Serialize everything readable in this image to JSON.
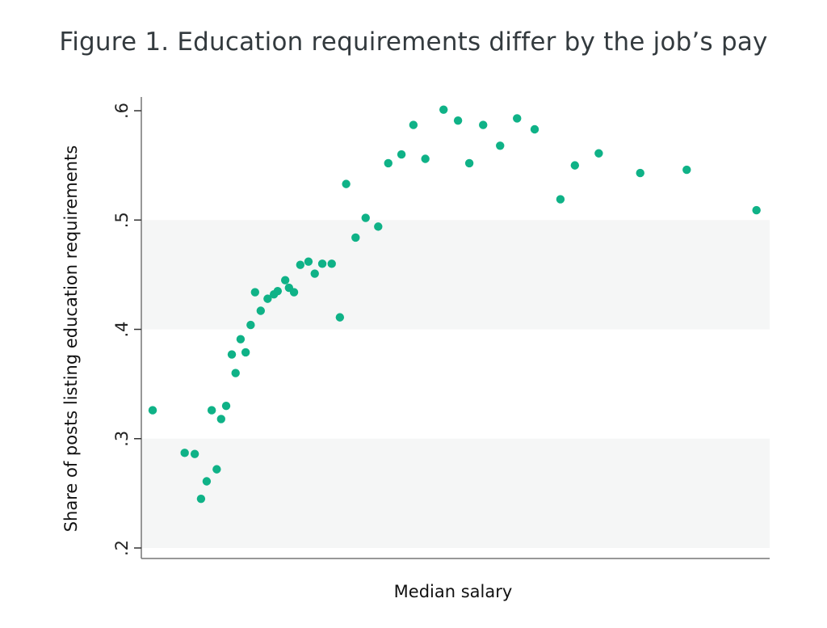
{
  "figure": {
    "title": "Figure 1. Education requirements differ by the job’s pay"
  },
  "colors": {
    "points": "#0fb287",
    "band": "#f5f6f6",
    "axis": "#777777",
    "title": "#333a3e"
  },
  "chart_data": {
    "type": "scatter",
    "title": "Figure 1. Education requirements differ by the job’s pay",
    "xlabel": "Median salary",
    "ylabel": "Share of posts listing education requirements",
    "x_note": "x-axis has no tick labels; x values are relative positions (0-100) along the Median salary axis",
    "ylim": [
      0.2,
      0.6
    ],
    "yticks": [
      ".2",
      ".3",
      ".4",
      ".5",
      ".6"
    ],
    "ytick_values": [
      0.2,
      0.3,
      0.4,
      0.5,
      0.6
    ],
    "grid": "alternating horizontal bands (.2-.3 and .4-.5 shaded)",
    "legend": "none",
    "series": [
      {
        "name": "Share of posts listing education requirements",
        "points": [
          {
            "x": 1.8,
            "y": 0.326
          },
          {
            "x": 6.9,
            "y": 0.287
          },
          {
            "x": 8.5,
            "y": 0.286
          },
          {
            "x": 9.5,
            "y": 0.245
          },
          {
            "x": 10.4,
            "y": 0.261
          },
          {
            "x": 11.2,
            "y": 0.326
          },
          {
            "x": 12.0,
            "y": 0.272
          },
          {
            "x": 12.7,
            "y": 0.318
          },
          {
            "x": 13.5,
            "y": 0.33
          },
          {
            "x": 14.4,
            "y": 0.377
          },
          {
            "x": 15.0,
            "y": 0.36
          },
          {
            "x": 15.8,
            "y": 0.391
          },
          {
            "x": 16.6,
            "y": 0.379
          },
          {
            "x": 17.4,
            "y": 0.404
          },
          {
            "x": 18.1,
            "y": 0.434
          },
          {
            "x": 19.0,
            "y": 0.417
          },
          {
            "x": 20.1,
            "y": 0.428
          },
          {
            "x": 21.1,
            "y": 0.432
          },
          {
            "x": 21.7,
            "y": 0.435
          },
          {
            "x": 22.9,
            "y": 0.445
          },
          {
            "x": 23.5,
            "y": 0.438
          },
          {
            "x": 24.3,
            "y": 0.434
          },
          {
            "x": 25.3,
            "y": 0.459
          },
          {
            "x": 26.6,
            "y": 0.462
          },
          {
            "x": 27.6,
            "y": 0.451
          },
          {
            "x": 28.8,
            "y": 0.46
          },
          {
            "x": 30.3,
            "y": 0.46
          },
          {
            "x": 31.6,
            "y": 0.411
          },
          {
            "x": 32.6,
            "y": 0.533
          },
          {
            "x": 34.1,
            "y": 0.484
          },
          {
            "x": 35.7,
            "y": 0.502
          },
          {
            "x": 37.7,
            "y": 0.494
          },
          {
            "x": 39.3,
            "y": 0.552
          },
          {
            "x": 41.4,
            "y": 0.56
          },
          {
            "x": 43.3,
            "y": 0.587
          },
          {
            "x": 45.2,
            "y": 0.556
          },
          {
            "x": 48.1,
            "y": 0.601
          },
          {
            "x": 50.4,
            "y": 0.591
          },
          {
            "x": 52.2,
            "y": 0.552
          },
          {
            "x": 54.4,
            "y": 0.587
          },
          {
            "x": 57.1,
            "y": 0.568
          },
          {
            "x": 59.8,
            "y": 0.593
          },
          {
            "x": 62.6,
            "y": 0.583
          },
          {
            "x": 66.7,
            "y": 0.519
          },
          {
            "x": 69.0,
            "y": 0.55
          },
          {
            "x": 72.8,
            "y": 0.561
          },
          {
            "x": 79.4,
            "y": 0.543
          },
          {
            "x": 86.8,
            "y": 0.546
          },
          {
            "x": 97.9,
            "y": 0.509
          }
        ]
      }
    ]
  }
}
